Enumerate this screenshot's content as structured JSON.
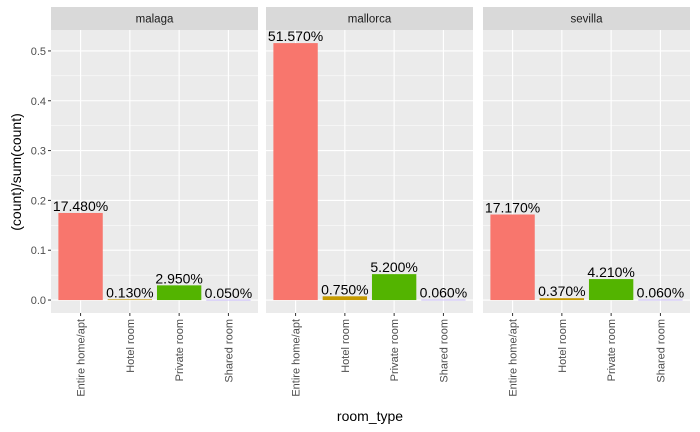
{
  "chart_data": {
    "type": "bar",
    "facet_variable": "city",
    "categories": [
      "Entire home/apt",
      "Hotel room",
      "Private room",
      "Shared room"
    ],
    "category_colors": {
      "Entire home/apt": "#F8766D",
      "Hotel room": "#C49A00",
      "Private room": "#53B400",
      "Shared room": "#A58AFF"
    },
    "panels": [
      {
        "facet": "malaga",
        "values": [
          0.1748,
          0.0013,
          0.0295,
          0.0005
        ],
        "labels": [
          "17.480%",
          "0.130%",
          "2.950%",
          "0.050%"
        ]
      },
      {
        "facet": "mallorca",
        "values": [
          0.5157,
          0.0075,
          0.052,
          0.0006
        ],
        "labels": [
          "51.570%",
          "0.750%",
          "5.200%",
          "0.060%"
        ]
      },
      {
        "facet": "sevilla",
        "values": [
          0.1717,
          0.0037,
          0.0421,
          0.0006
        ],
        "labels": [
          "17.170%",
          "0.370%",
          "4.210%",
          "0.060%"
        ]
      }
    ],
    "xlabel": "room_type",
    "ylabel": "(count)/sum(count)",
    "ylim": [
      -0.026,
      0.542
    ],
    "yticks": [
      0.0,
      0.1,
      0.2,
      0.3,
      0.4,
      0.5
    ],
    "ytick_labels": [
      "0.0",
      "0.1",
      "0.2",
      "0.3",
      "0.4",
      "0.5"
    ],
    "grid": true,
    "legend": "none",
    "theme": {
      "panel_background": "#EBEBEB",
      "strip_background": "#D9D9D9",
      "grid_major": "#FFFFFF"
    }
  }
}
